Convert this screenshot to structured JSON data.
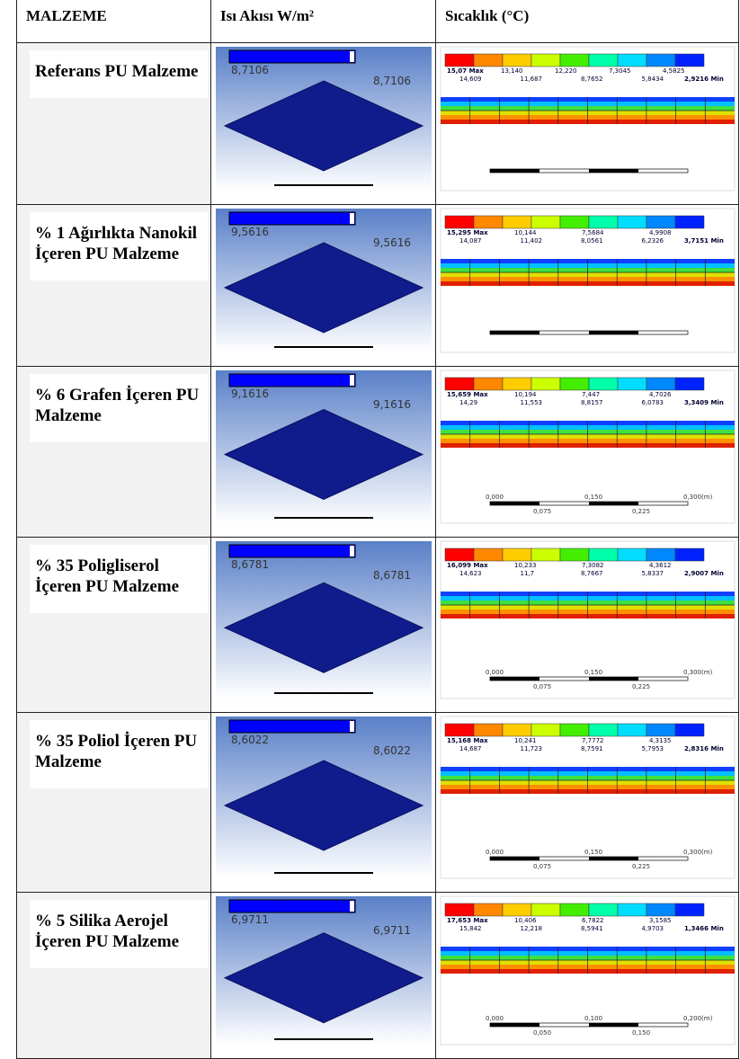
{
  "header": {
    "material": "MALZEME",
    "heat_flux": "Isı Akısı W/m²",
    "temperature": "Sıcaklık (°C)"
  },
  "rows": [
    {
      "material": "Referans PU Malzeme",
      "heat_flux": "8,7106",
      "temp_top": [
        "15,07 Max",
        "13,140",
        "12,220",
        "7,3045",
        "4,5825"
      ],
      "temp_bottom": [
        "14,609",
        "11,687",
        "8,7652",
        "5,8434",
        "2,9216 Min"
      ]
    },
    {
      "material": "% 1 Ağırlıkta Nanokil İçeren PU Malzeme",
      "heat_flux": "9,5616",
      "temp_top": [
        "15,295 Max",
        "10,144",
        "7,5684",
        "4,9908"
      ],
      "temp_bottom": [
        "14,087",
        "11,402",
        "8,0561",
        "6,2326",
        "3,7151 Min"
      ]
    },
    {
      "material": "% 6 Grafen İçeren PU Malzeme",
      "heat_flux": "9,1616",
      "temp_top": [
        "15,659 Max",
        "10,194",
        "7,447",
        "4,7026"
      ],
      "temp_bottom": [
        "14,29",
        "11,553",
        "8,8157",
        "6,0783",
        "3,3409 Min"
      ],
      "scale_top": [
        "0,000",
        "0,150",
        "0,300(m)"
      ],
      "scale_bottom": [
        "0,075",
        "0,225"
      ]
    },
    {
      "material": "% 35 Poligliserol İçeren PU Malzeme",
      "heat_flux": "8,6781",
      "temp_top": [
        "16,099 Max",
        "10,233",
        "7,3082",
        "4,3612"
      ],
      "temp_bottom": [
        "14,623",
        "11,7",
        "8,7667",
        "5,8337",
        "2,9007 Min"
      ],
      "scale_top": [
        "0,000",
        "0,150",
        "0,300(m)"
      ],
      "scale_bottom": [
        "0,075",
        "0,225"
      ]
    },
    {
      "material": "% 35 Poliol İçeren PU Malzeme",
      "heat_flux": "8,6022",
      "temp_top": [
        "15,168 Max",
        "10,241",
        "7,7772",
        "4,3135"
      ],
      "temp_bottom": [
        "14,687",
        "11,723",
        "8,7591",
        "5,7953",
        "2,8316 Min"
      ],
      "scale_top": [
        "0,000",
        "0,150",
        "0,300(m)"
      ],
      "scale_bottom": [
        "0,075",
        "0,225"
      ]
    },
    {
      "material": "% 5 Silika Aerojel İçeren PU Malzeme",
      "heat_flux": "6,9711",
      "temp_top": [
        "17,653 Max",
        "10,406",
        "6,7822",
        "3,1585"
      ],
      "temp_bottom": [
        "15,842",
        "12,218",
        "8,5941",
        "4,9703",
        "1,3466 Min"
      ],
      "scale_top": [
        "0,000",
        "0,100",
        "0,200(m)"
      ],
      "scale_bottom": [
        "0,050",
        "0,150"
      ]
    }
  ]
}
